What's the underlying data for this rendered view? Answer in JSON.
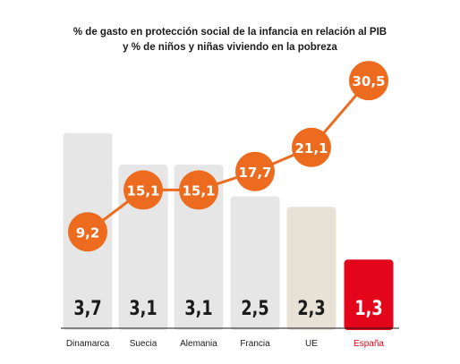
{
  "chart_data": {
    "type": "bar",
    "title_lines": [
      "% de gasto en protección social de la infancia en relación al PIB",
      "y % de niños y niñas viviendo en la pobreza"
    ],
    "categories": [
      "Dinamarca",
      "Suecia",
      "Alemania",
      "Francia",
      "UE",
      "España"
    ],
    "series": [
      {
        "type": "bar",
        "values": [
          3.7,
          3.1,
          3.1,
          2.5,
          2.3,
          1.3
        ],
        "labels": [
          "3,7",
          "3,1",
          "3,1",
          "2,5",
          "2,3",
          "1,3"
        ]
      },
      {
        "type": "line",
        "values": [
          9.2,
          15.1,
          15.1,
          17.7,
          21.1,
          30.5
        ],
        "labels": [
          "9,2",
          "15,1",
          "15,1",
          "17,7",
          "21,1",
          "30,5"
        ]
      }
    ],
    "colors": {
      "bar_default": "#e6e6e6",
      "bar_ue": "#e8e2d6",
      "bar_highlight": "#e3061b",
      "line": "#ed6b1f",
      "value_text": "#1a1a1a",
      "value_text_highlight": "#ffffff",
      "category_text": "#1a1a1a",
      "category_text_highlight": "#e3061b",
      "axis": "#1a1a1a"
    },
    "highlight_category": "España",
    "legend": "none",
    "grid": false
  }
}
